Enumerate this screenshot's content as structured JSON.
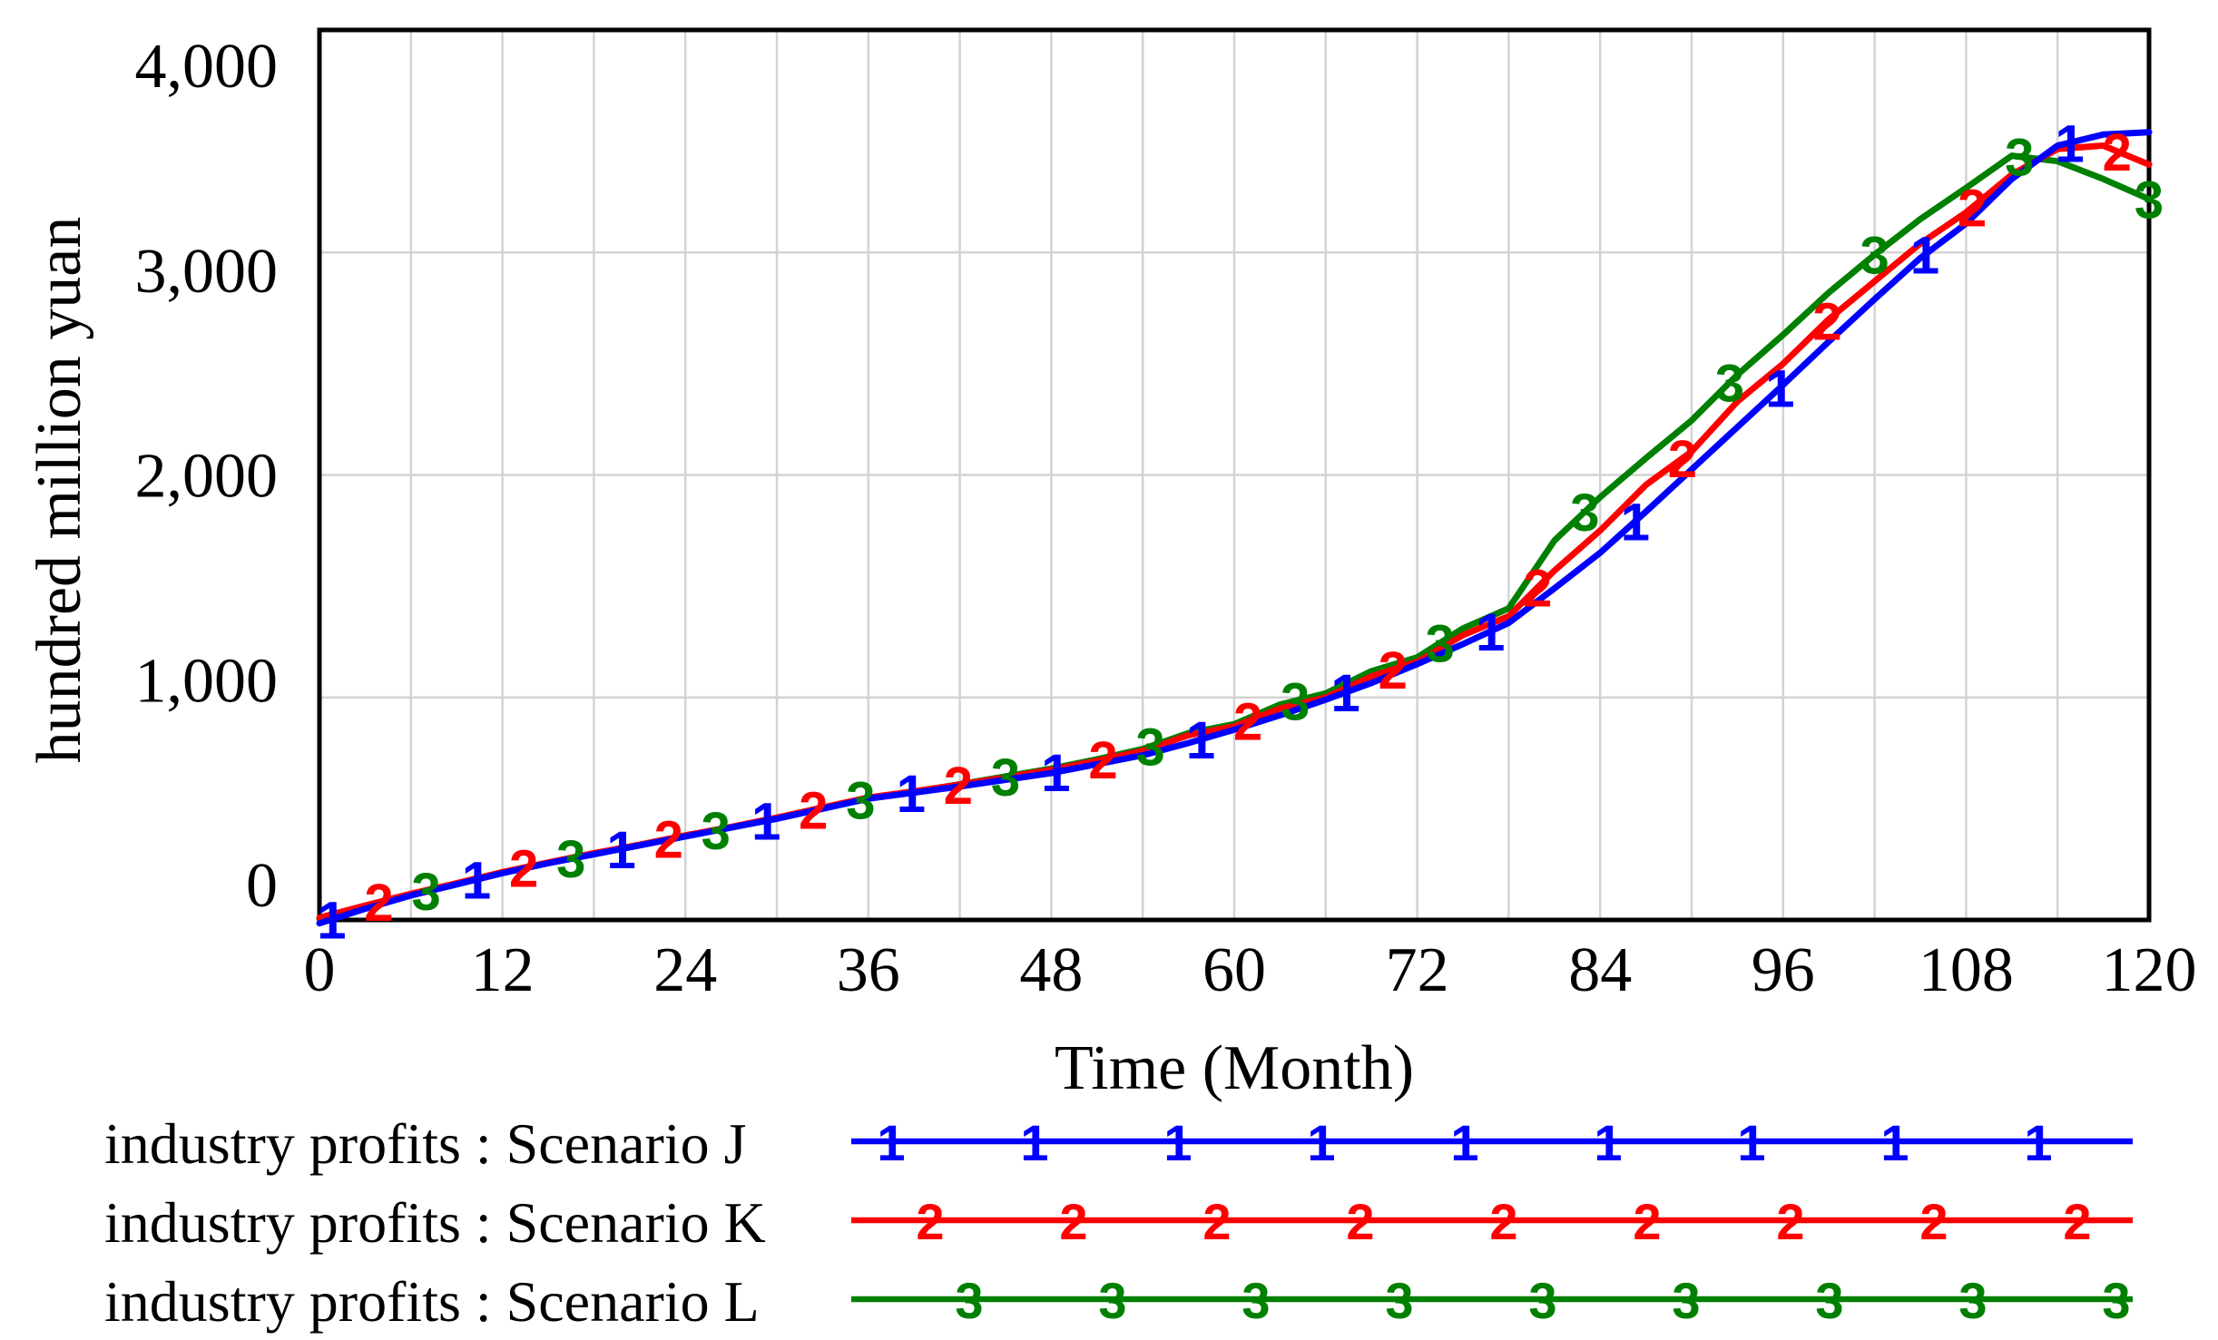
{
  "chart_data": {
    "type": "line",
    "title": "",
    "xlabel": "Time (Month)",
    "ylabel": "hundred million yuan",
    "xlim": [
      0,
      120
    ],
    "ylim": [
      0,
      4000
    ],
    "x_tick_labels": [
      "0",
      "12",
      "24",
      "36",
      "48",
      "60",
      "72",
      "84",
      "96",
      "108",
      "120"
    ],
    "x_tick_values": [
      0,
      12,
      24,
      36,
      48,
      60,
      72,
      84,
      96,
      108,
      120
    ],
    "x_grid_step": 6,
    "y_tick_labels": [
      "0",
      "1,000",
      "2,000",
      "3,000",
      "4,000"
    ],
    "y_tick_values": [
      0,
      1000,
      2000,
      3000,
      4000
    ],
    "grid_on": true,
    "legend_position": "bottom",
    "months": [
      0,
      3,
      6,
      9,
      12,
      15,
      18,
      21,
      24,
      27,
      30,
      33,
      36,
      39,
      42,
      45,
      48,
      51,
      54,
      57,
      60,
      63,
      66,
      69,
      72,
      75,
      78,
      81,
      84,
      87,
      90,
      93,
      96,
      99,
      102,
      105,
      108,
      111,
      114,
      117,
      120
    ],
    "series": [
      {
        "name": "industry profits : Scenario J",
        "marker": "1",
        "color": "#0000ff",
        "values": [
          -15,
          50,
          110,
          160,
          210,
          255,
          295,
          335,
          375,
          415,
          455,
          500,
          545,
          572,
          600,
          630,
          660,
          700,
          740,
          795,
          855,
          920,
          990,
          1065,
          1150,
          1240,
          1335,
          1490,
          1650,
          1835,
          2025,
          2215,
          2405,
          2600,
          2790,
          2975,
          3130,
          3330,
          3480,
          3530,
          3540
        ],
        "marker_months": [
          0.8,
          10.3,
          19.8,
          29.3,
          38.8,
          48.3,
          57.8,
          67.3,
          76.8,
          86.3,
          95.8,
          105.3,
          114.8
        ]
      },
      {
        "name": "industry profits : Scenario K",
        "marker": "2",
        "color": "#ff0000",
        "values": [
          10,
          65,
          118,
          165,
          215,
          258,
          300,
          338,
          380,
          418,
          460,
          505,
          550,
          578,
          608,
          640,
          675,
          715,
          760,
          830,
          870,
          950,
          1000,
          1095,
          1160,
          1280,
          1365,
          1570,
          1750,
          1955,
          2105,
          2330,
          2500,
          2700,
          2870,
          3040,
          3180,
          3350,
          3465,
          3480,
          3395
        ],
        "marker_months": [
          3.9,
          13.4,
          22.9,
          32.4,
          41.9,
          51.4,
          60.9,
          70.4,
          79.9,
          89.4,
          98.9,
          108.4,
          117.9
        ]
      },
      {
        "name": "industry profits : Scenario L",
        "marker": "3",
        "color": "#008000",
        "values": [
          5,
          60,
          114,
          162,
          212,
          256,
          298,
          336,
          378,
          416,
          458,
          503,
          548,
          576,
          610,
          645,
          680,
          722,
          768,
          840,
          880,
          968,
          1018,
          1118,
          1180,
          1310,
          1400,
          1705,
          1900,
          2075,
          2245,
          2450,
          2630,
          2820,
          2990,
          3150,
          3290,
          3435,
          3410,
          3330,
          3240
        ],
        "marker_months": [
          7,
          16.5,
          26,
          35.5,
          45,
          54.5,
          64,
          73.5,
          83,
          92.5,
          102,
          111.5,
          120
        ]
      }
    ],
    "colors": {
      "grid": "#d3d3d3",
      "axis": "#000000",
      "text": "#000000",
      "background": "#ffffff"
    }
  }
}
